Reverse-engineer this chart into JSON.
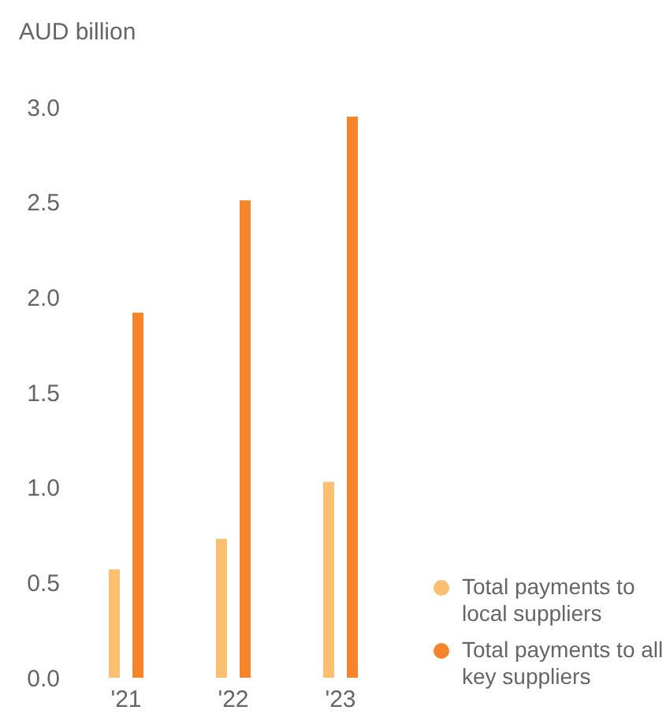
{
  "chart_data": {
    "type": "bar",
    "ylabel": "AUD billion",
    "categories": [
      "'21",
      "'22",
      "'23"
    ],
    "series": [
      {
        "name": "Total payments to local suppliers",
        "color": "#fbbf72",
        "values": [
          0.57,
          0.73,
          1.03
        ]
      },
      {
        "name": "Total payments to all key suppliers",
        "color": "#f5852a",
        "values": [
          1.92,
          2.51,
          2.95
        ]
      }
    ],
    "ylim": [
      0,
      3
    ],
    "yticks": [
      {
        "value": 0,
        "label": "0.0"
      },
      {
        "value": 0.5,
        "label": "0.5"
      },
      {
        "value": 1,
        "label": "1.0"
      },
      {
        "value": 1.5,
        "label": "1.5"
      },
      {
        "value": 2,
        "label": "2.0"
      },
      {
        "value": 2.5,
        "label": "2.5"
      },
      {
        "value": 3,
        "label": "3.0"
      }
    ],
    "grid": false,
    "legend": "bottom right"
  }
}
